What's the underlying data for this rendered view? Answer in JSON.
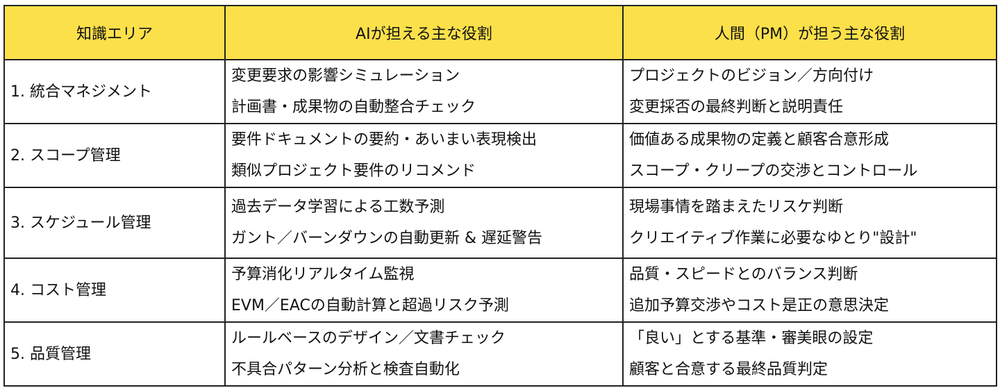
{
  "colors": {
    "header_bg": "#FCE04A",
    "border": "#222222"
  },
  "headers": [
    "知識エリア",
    "AIが担える主な役割",
    "人間（PM）が担う主な役割"
  ],
  "rows": [
    {
      "area": "1. 統合マネジメント",
      "ai": [
        "変更要求の影響シミュレーション",
        "計画書・成果物の自動整合チェック"
      ],
      "human": [
        "プロジェクトのビジョン／方向付け",
        "変更採否の最終判断と説明責任"
      ]
    },
    {
      "area": "2. スコープ管理",
      "ai": [
        "要件ドキュメントの要約・あいまい表現検出",
        "類似プロジェクト要件のリコメンド"
      ],
      "human": [
        "価値ある成果物の定義と顧客合意形成",
        "スコープ・クリープの交渉とコントロール"
      ]
    },
    {
      "area": "3. スケジュール管理",
      "ai": [
        "過去データ学習による工数予測",
        "ガント／バーンダウンの自動更新 & 遅延警告"
      ],
      "human": [
        "現場事情を踏まえたリスケ判断",
        "クリエイティブ作業に必要なゆとり\"設計\""
      ]
    },
    {
      "area": "4. コスト管理",
      "ai": [
        "予算消化リアルタイム監視",
        "EVM／EACの自動計算と超過リスク予測"
      ],
      "human": [
        "品質・スピードとのバランス判断",
        "追加予算交渉やコスト是正の意思決定"
      ]
    },
    {
      "area": "5. 品質管理",
      "ai": [
        "ルールベースのデザイン／文書チェック",
        "不具合パターン分析と検査自動化"
      ],
      "human": [
        "「良い」とする基準・審美眼の設定",
        "顧客と合意する最終品質判定"
      ]
    }
  ]
}
